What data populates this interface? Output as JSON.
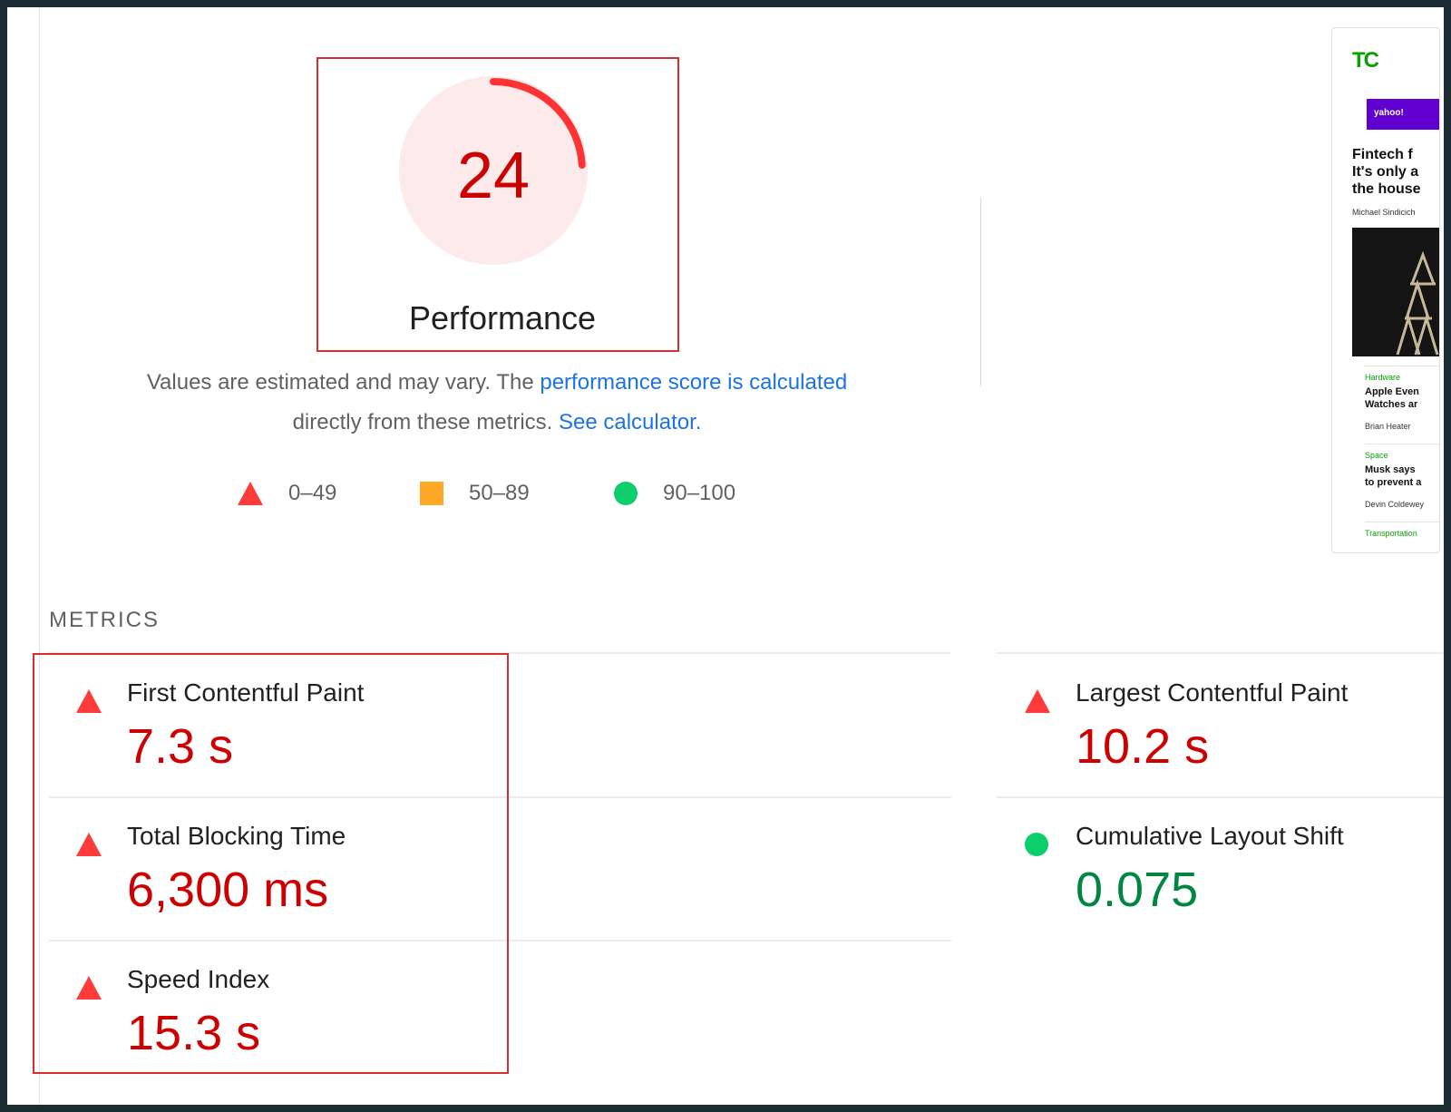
{
  "score": {
    "value": "24",
    "label": "Performance",
    "fraction": 0.24,
    "color": "#ff3333",
    "bg_color": "#fdeaea"
  },
  "description": {
    "text_before": "Values are estimated and may vary. The ",
    "link_score": "performance score is calculated",
    "text_middle": "directly from these metrics. ",
    "link_calculator": "See calculator."
  },
  "legend": [
    {
      "shape": "triangle",
      "color": "#ff3b3b",
      "label": "0–49"
    },
    {
      "shape": "square",
      "color": "#ffa726",
      "label": "50–89"
    },
    {
      "shape": "circle",
      "color": "#0cce6b",
      "label": "90–100"
    }
  ],
  "thumbnail": {
    "logo": "TC",
    "ad_brand": "yahoo!",
    "headline_lines": [
      "Fintech f",
      "It's only a",
      "the house"
    ],
    "headline_author": "Michael Sindicich",
    "articles": [
      {
        "category": "Hardware",
        "title_lines": [
          "Apple Even",
          "Watches ar"
        ],
        "author": "Brian Heater"
      },
      {
        "category": "Space",
        "title_lines": [
          "Musk says",
          "to prevent a"
        ],
        "author": "Devin Coldewey"
      },
      {
        "category": "Transportation",
        "title_lines": [],
        "author": ""
      }
    ]
  },
  "metrics": {
    "title": "METRICS",
    "items": [
      {
        "name": "First Contentful Paint",
        "value": "7.3 s",
        "rating": "poor"
      },
      {
        "name": "Largest Contentful Paint",
        "value": "10.2 s",
        "rating": "poor"
      },
      {
        "name": "Total Blocking Time",
        "value": "6,300 ms",
        "rating": "poor"
      },
      {
        "name": "Cumulative Layout Shift",
        "value": "0.075",
        "rating": "good"
      },
      {
        "name": "Speed Index",
        "value": "15.3 s",
        "rating": "poor"
      }
    ]
  }
}
